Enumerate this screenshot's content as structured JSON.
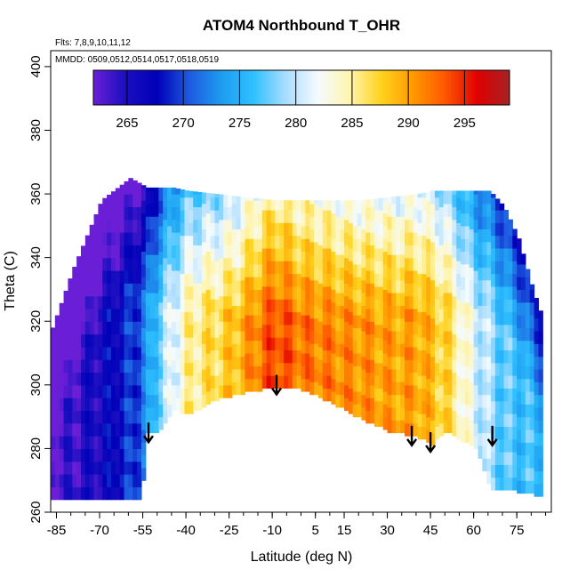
{
  "chart_data": {
    "type": "heatmap",
    "title": "ATOM4 Northbound T_OHR",
    "subtitle_flights": "Flts: 7,8,9,10,11,12",
    "subtitle_dates": "MMDD: 0509,0512,0514,0517,0518,0519",
    "xlabel": "Latitude (deg N)",
    "ylabel": "Theta (C)",
    "xlim": [
      -87,
      87
    ],
    "ylim": [
      260,
      405
    ],
    "x_ticks": [
      -85,
      -70,
      -55,
      -40,
      -25,
      -10,
      5,
      15,
      30,
      45,
      60,
      75
    ],
    "y_ticks": [
      260,
      280,
      300,
      320,
      340,
      360,
      380,
      400
    ],
    "colorbar": {
      "range": [
        262,
        299
      ],
      "ticks": [
        265,
        270,
        275,
        280,
        285,
        290,
        295
      ],
      "colors": [
        "#6a1fd6",
        "#1a0fc0",
        "#0000b8",
        "#1e5ae0",
        "#1e9cf0",
        "#2fc0ff",
        "#a8dcff",
        "#f4fbff",
        "#fff5b0",
        "#ffd21c",
        "#ff9900",
        "#ff5500",
        "#e00000",
        "#a52323"
      ]
    },
    "arrows": [
      {
        "lat": -53,
        "theta": 282
      },
      {
        "lat": -8.5,
        "theta": 297
      },
      {
        "lat": 38.5,
        "theta": 281
      },
      {
        "lat": 45,
        "theta": 279
      },
      {
        "lat": 66.5,
        "theta": 281
      }
    ],
    "field_profile": {
      "lat": [
        -85,
        -70,
        -60,
        -55,
        -50,
        -40,
        -25,
        -10,
        0,
        15,
        30,
        40,
        50,
        60,
        70,
        80
      ],
      "temp": [
        263,
        266,
        269,
        272,
        278,
        285,
        288,
        294,
        292,
        291,
        290,
        290,
        287,
        281,
        277,
        276
      ]
    },
    "coverage": {
      "lat": [
        -87,
        -80,
        -70,
        -60,
        -56,
        -54,
        -50,
        -45,
        -40,
        -30,
        -20,
        -10,
        0,
        10,
        20,
        30,
        40,
        45,
        50,
        55,
        60,
        65,
        70,
        75,
        80,
        83
      ],
      "bottom": [
        264,
        264,
        264,
        264,
        264,
        285,
        285,
        292,
        290,
        295,
        297,
        299,
        298,
        294,
        289,
        285,
        283,
        281,
        285,
        282,
        280,
        267,
        267,
        266,
        265,
        265
      ],
      "top": [
        318,
        336,
        358,
        365,
        363,
        362,
        362,
        362,
        361,
        360,
        359,
        358,
        358,
        358,
        358,
        359,
        360,
        361,
        361,
        361,
        361,
        361,
        356,
        346,
        330,
        322
      ]
    }
  }
}
